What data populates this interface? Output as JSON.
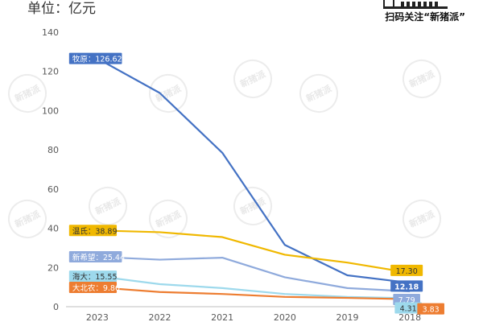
{
  "header": {
    "unit": "单位：亿元",
    "qr_text": "扫码关注“新猪派”"
  },
  "watermark": {
    "text": "新猪派"
  },
  "chart_data": {
    "type": "line",
    "x": [
      "2023",
      "2022",
      "2021",
      "2020",
      "2019",
      "2018"
    ],
    "ylim": [
      0,
      140
    ],
    "yticks": [
      0,
      20,
      40,
      60,
      80,
      100,
      120,
      140
    ],
    "grid": false,
    "series": [
      {
        "name": "牧原",
        "color": "#4472c4",
        "values": [
          126.62,
          109.0,
          78.5,
          31.5,
          16.0,
          12.18
        ],
        "labels": [
          {
            "idx": 0,
            "text": "牧原：126.62"
          },
          {
            "idx": 5,
            "text": "12.18"
          }
        ]
      },
      {
        "name": "温氏",
        "color": "#f0b800",
        "values": [
          38.89,
          38.0,
          35.5,
          26.5,
          22.5,
          17.3
        ],
        "labels": [
          {
            "idx": 0,
            "text": "温氏：38.89"
          },
          {
            "idx": 5,
            "text": "17.30"
          }
        ]
      },
      {
        "name": "新希望",
        "color": "#8faadc",
        "values": [
          25.44,
          24.0,
          25.0,
          15.0,
          9.5,
          7.79
        ],
        "labels": [
          {
            "idx": 0,
            "text": "新希望：25.44"
          },
          {
            "idx": 5,
            "text": "7.79"
          }
        ]
      },
      {
        "name": "海大",
        "color": "#9dd9ec",
        "values": [
          15.55,
          11.5,
          9.5,
          6.5,
          5.0,
          4.31
        ],
        "labels": [
          {
            "idx": 0,
            "text": "海大：15.55"
          },
          {
            "idx": 5,
            "text": "4.31"
          }
        ]
      },
      {
        "name": "大北农",
        "color": "#ed7d31",
        "values": [
          9.86,
          7.5,
          6.5,
          5.0,
          4.5,
          3.83
        ],
        "labels": [
          {
            "idx": 0,
            "text": "大北农：9.86"
          },
          {
            "idx": 5,
            "text": "3.83"
          }
        ]
      }
    ]
  }
}
